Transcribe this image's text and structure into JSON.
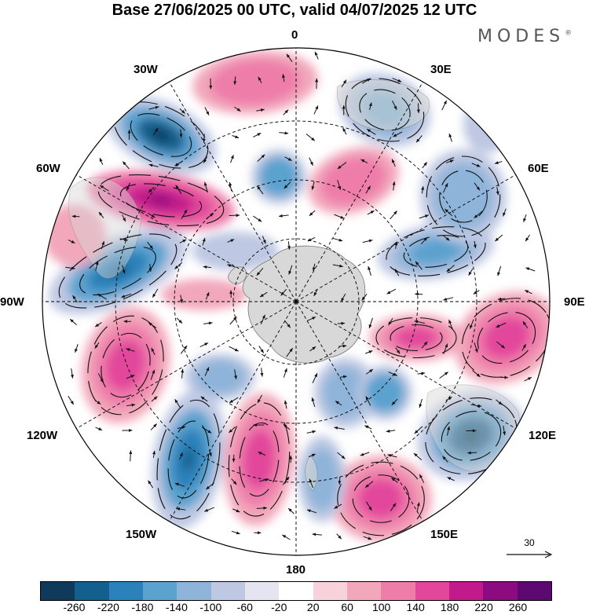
{
  "title": "Base 27/06/2025 00 UTC, valid 04/07/2025 12 UTC",
  "brand": "MODES",
  "brand_mark": "®",
  "meridians": {
    "m0": "0",
    "m30e": "30E",
    "m60e": "60E",
    "m90e": "90E",
    "m120e": "120E",
    "m150e": "150E",
    "m180": "180",
    "m150w": "150W",
    "m120w": "120W",
    "m90w": "90W",
    "m60w": "60W",
    "m30w": "30W"
  },
  "vector_scale": "30",
  "colorbar": {
    "colors": [
      "#0f3a5a",
      "#13608f",
      "#2b81b9",
      "#5ba2cf",
      "#8eb4d9",
      "#bec8e2",
      "#e4e5f0",
      "#ffffff",
      "#f7d2da",
      "#f2a7bb",
      "#ee7daa",
      "#e2479b",
      "#c21a8a",
      "#8c0c80",
      "#5c0a72"
    ],
    "ticks": [
      "-260",
      "-220",
      "-180",
      "-140",
      "-100",
      "-60",
      "-20",
      "20",
      "60",
      "100",
      "140",
      "180",
      "220",
      "260"
    ]
  },
  "map_colors": {
    "land": "#d8d8d8",
    "grid": "#000000",
    "vector": "#111111"
  }
}
